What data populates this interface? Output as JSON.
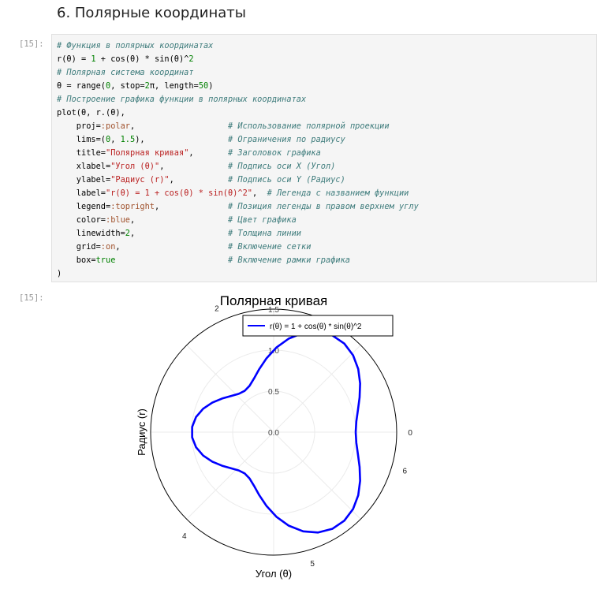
{
  "section": {
    "heading": "6. Полярные координаты"
  },
  "cells": [
    {
      "in_prompt": "[15]:",
      "out_prompt": "[15]:"
    }
  ],
  "code_lines": [
    "# Функция в полярных координатах",
    "r(θ) = 1 + cos(θ) * sin(θ)^2",
    "# Полярная система координат",
    "θ = range(0, stop=2π, length=50)",
    "# Построение графика функции в полярных координатах",
    "plot(θ, r.(θ),",
    "    proj=:polar,                   # Использование полярной проекции",
    "    lims=(0, 1.5),                 # Ограничения по радиусу",
    "    title=\"Полярная кривая\",       # Заголовок графика",
    "    xlabel=\"Угол (θ)\",             # Подпись оси X (Угол)",
    "    ylabel=\"Радиус (r)\",           # Подпись оси Y (Радиус)",
    "    label=\"r(θ) = 1 + cos(θ) * sin(θ)^2\",  # Легенда с названием функции",
    "    legend=:topright,              # Позиция легенды в правом верхнем углу",
    "    color=:blue,                   # Цвет графика",
    "    linewidth=2,                   # Толщина линии",
    "    grid=:on,                      # Включение сетки",
    "    box=true                       # Включение рамки графика",
    ")"
  ],
  "chart_data": {
    "type": "line",
    "projection": "polar",
    "title": "Полярная кривая",
    "xlabel": "Угол (θ)",
    "ylabel": "Радиус (r)",
    "rlim": [
      0,
      1.5
    ],
    "r_ticks": [
      "0.0",
      "0.5",
      "1.0",
      "1.5"
    ],
    "theta_ticks": [
      "0",
      "2",
      "4",
      "5",
      "6"
    ],
    "grid": true,
    "legend_position": "top-right",
    "series": [
      {
        "name": "r(θ) = 1 + cos(θ) * sin(θ)^2",
        "color": "#0000ff",
        "function": "1 + cos(θ) * sin(θ)^2",
        "theta_range": [
          0,
          6.2832
        ],
        "samples": 50
      }
    ]
  }
}
